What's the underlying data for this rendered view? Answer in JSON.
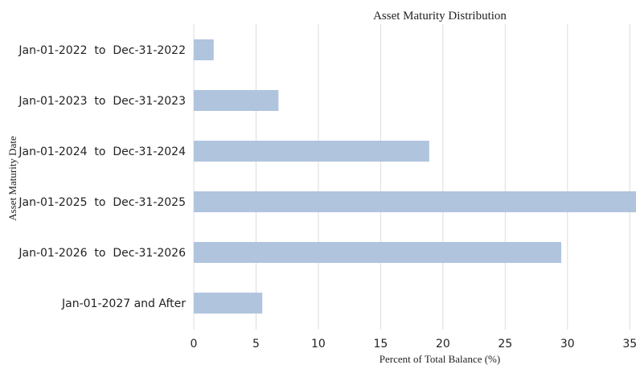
{
  "chart_data": {
    "type": "bar",
    "orientation": "horizontal",
    "title": "Asset Maturity Distribution",
    "xlabel": "Percent of Total Balance (%)",
    "ylabel": "Asset Maturity Date",
    "categories": [
      "Jan-01-2022  to  Dec-31-2022",
      "Jan-01-2023  to  Dec-31-2023",
      "Jan-01-2024  to  Dec-31-2024",
      "Jan-01-2025  to  Dec-31-2025",
      "Jan-01-2026  to  Dec-31-2026",
      "Jan-01-2027 and After"
    ],
    "values": [
      1.6,
      6.8,
      18.9,
      35.5,
      29.5,
      5.5
    ],
    "xlim": [
      0,
      35.5
    ],
    "xticks": [
      0,
      5,
      10,
      15,
      20,
      25,
      30,
      35
    ],
    "grid": "vertical",
    "legend": "none",
    "bar_color": "#B0C4DE",
    "grid_color": "#DCDCDC"
  }
}
